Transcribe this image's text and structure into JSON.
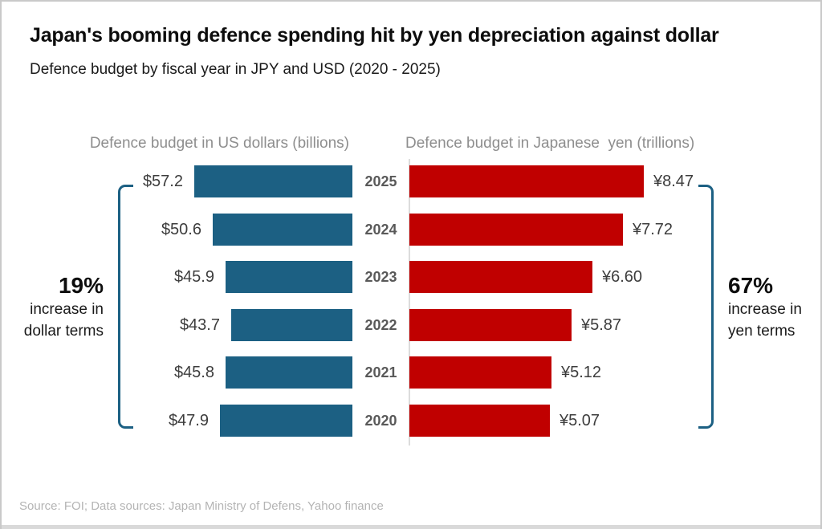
{
  "header": {
    "title": "Japan's booming defence spending hit by yen depreciation against dollar",
    "subtitle": "Defence budget by fiscal year in JPY and USD (2020 - 2025)"
  },
  "colors": {
    "usd_bar": "#1C6083",
    "jpy_bar": "#C00000",
    "bracket": "#1C6083",
    "year_label": "#595959",
    "value_label": "#3d3d3d",
    "chart_header": "#8e8e8e",
    "source_text": "#b4b4b4"
  },
  "chart_data": {
    "type": "bar",
    "orientation": "horizontal",
    "categories": [
      "2025",
      "2024",
      "2023",
      "2022",
      "2021",
      "2020"
    ],
    "series": [
      {
        "name": "Defence budget in US dollars (billions)",
        "unit": "USD billions",
        "direction": "left",
        "color": "#1C6083",
        "values": [
          57.2,
          50.6,
          45.9,
          43.7,
          45.8,
          47.9
        ],
        "labels": [
          "$57.2",
          "$50.6",
          "$45.9",
          "$43.7",
          "$45.8",
          "$47.9"
        ]
      },
      {
        "name": "Defence budget in Japanese  yen (trillions)",
        "unit": "JPY trillions",
        "direction": "right",
        "color": "#C00000",
        "values": [
          8.47,
          7.72,
          6.6,
          5.87,
          5.12,
          5.07
        ],
        "labels": [
          "¥8.47",
          "¥7.72",
          "¥6.60",
          "¥5.87",
          "¥5.12",
          "¥5.07"
        ]
      }
    ],
    "annotations": [
      {
        "side": "left",
        "percent": "19%",
        "lines": [
          "increase in",
          "dollar terms"
        ]
      },
      {
        "side": "right",
        "percent": "67%",
        "lines": [
          "increase in",
          "yen terms"
        ]
      }
    ],
    "xlim_usd": [
      0,
      57.2
    ],
    "xlim_jpy": [
      0,
      8.47
    ],
    "grid": false,
    "legend": "none"
  },
  "footer": {
    "source": "Source: FOI; Data sources: Japan Ministry of Defens, Yahoo finance"
  }
}
